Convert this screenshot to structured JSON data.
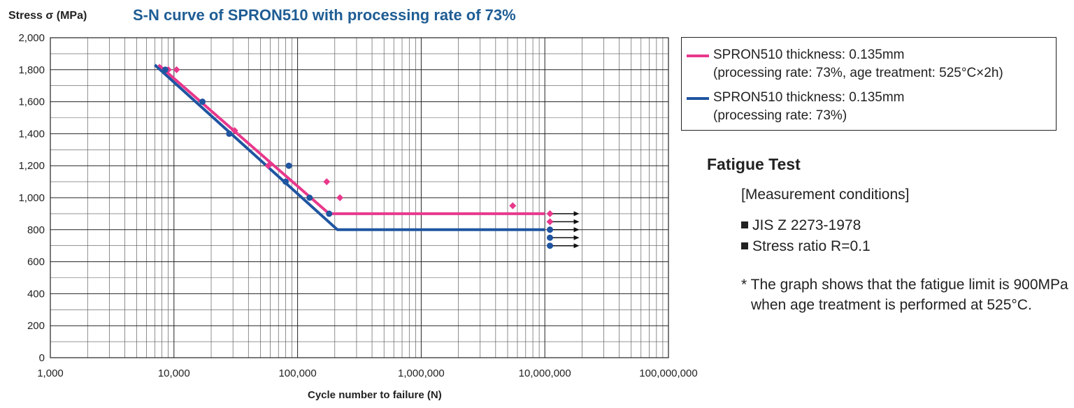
{
  "chart_data": {
    "type": "scatter",
    "title": "S-N curve of SPRON510 with processing rate of 73%",
    "ylabel": "Stress σ (MPa)",
    "xlabel": "Cycle number to failure (N)",
    "xscale": "log",
    "xlim": [
      1000,
      100000000
    ],
    "ylim": [
      0,
      2000
    ],
    "xticks": [
      1000,
      10000,
      100000,
      1000000,
      10000000,
      100000000
    ],
    "xtick_labels": [
      "1,000",
      "10,000",
      "100,000",
      "1,000,000",
      "10,000,000",
      "100,000,000"
    ],
    "yticks": [
      0,
      200,
      400,
      600,
      800,
      1000,
      1200,
      1400,
      1600,
      1800,
      2000
    ],
    "ytick_labels": [
      "0",
      "200",
      "400",
      "600",
      "800",
      "1,000",
      "1,200",
      "1,400",
      "1,600",
      "1,800",
      "2,000"
    ],
    "grid": true,
    "legend_position": "right",
    "series": [
      {
        "name": "SPRON510 thickness: 0.135mm (processing rate: 73%, age treatment: 525°C×2h)",
        "legend_lines": [
          "SPRON510 thickness: 0.135mm",
          "(processing rate: 73%, age treatment: 525°C×2h)"
        ],
        "color": "#e8388c",
        "marker": "diamond",
        "curve": [
          [
            7500,
            1830
          ],
          [
            180000,
            900
          ],
          [
            10000000,
            900
          ]
        ],
        "points": [
          [
            9000,
            1800
          ],
          [
            10500,
            1800
          ],
          [
            17000,
            1600
          ],
          [
            31000,
            1420
          ],
          [
            58000,
            1200
          ],
          [
            172000,
            1100
          ],
          [
            220000,
            1000
          ],
          [
            5500000,
            950
          ],
          [
            11000000,
            900
          ],
          [
            11000000,
            850
          ],
          [
            11000000,
            800
          ]
        ],
        "runouts": [
          [
            11000000,
            900
          ],
          [
            11000000,
            850
          ],
          [
            11000000,
            800
          ]
        ]
      },
      {
        "name": "SPRON510 thickness: 0.135mm (processing rate: 73%)",
        "legend_lines": [
          "SPRON510 thickness: 0.135mm",
          "(processing rate: 73%)"
        ],
        "color": "#1f55a1",
        "marker": "circle",
        "curve": [
          [
            7000,
            1830
          ],
          [
            210000,
            800
          ],
          [
            10000000,
            800
          ]
        ],
        "points": [
          [
            8500,
            1800
          ],
          [
            17000,
            1600
          ],
          [
            28000,
            1400
          ],
          [
            85000,
            1200
          ],
          [
            80000,
            1100
          ],
          [
            125000,
            1000
          ],
          [
            180000,
            900
          ],
          [
            11000000,
            800
          ],
          [
            11000000,
            750
          ],
          [
            11000000,
            700
          ]
        ],
        "runouts": [
          [
            11000000,
            800
          ],
          [
            11000000,
            750
          ],
          [
            11000000,
            700
          ]
        ]
      }
    ]
  },
  "notes": {
    "title": "Fatigue Test",
    "subtitle": "[Measurement conditions]",
    "bullets": [
      "JIS Z 2273-1978",
      "Stress ratio R=0.1"
    ],
    "footnote": "* The graph shows that the fatigue limit is 900MPa when age treatment is performed at 525°C."
  }
}
